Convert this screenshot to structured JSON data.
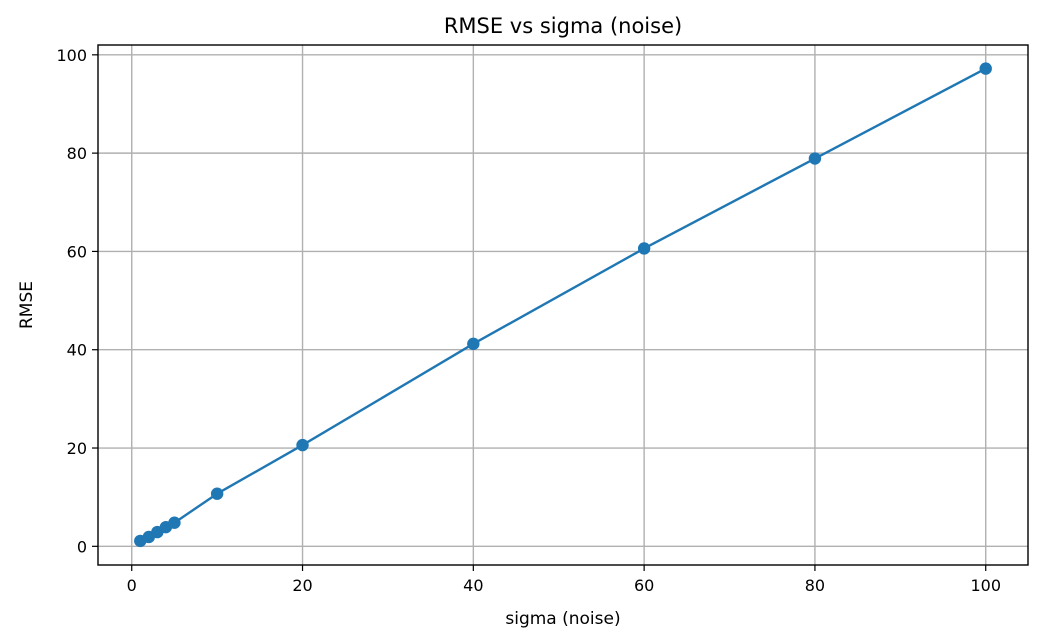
{
  "chart_data": {
    "type": "line",
    "title": "RMSE vs sigma (noise)",
    "xlabel": "sigma (noise)",
    "ylabel": "RMSE",
    "xlim": [
      -3.95,
      104.95
    ],
    "ylim": [
      -3.8,
      102.0
    ],
    "xticks": [
      0,
      20,
      40,
      60,
      80,
      100
    ],
    "yticks": [
      0,
      20,
      40,
      60,
      80,
      100
    ],
    "grid": true,
    "series": [
      {
        "color": "#1f77b4",
        "marker": "circle",
        "x": [
          1,
          2,
          3,
          4,
          5,
          10,
          20,
          40,
          60,
          80,
          100
        ],
        "y": [
          1.1,
          1.9,
          2.9,
          3.9,
          4.8,
          10.7,
          20.6,
          41.2,
          60.6,
          78.9,
          97.2
        ]
      }
    ]
  }
}
